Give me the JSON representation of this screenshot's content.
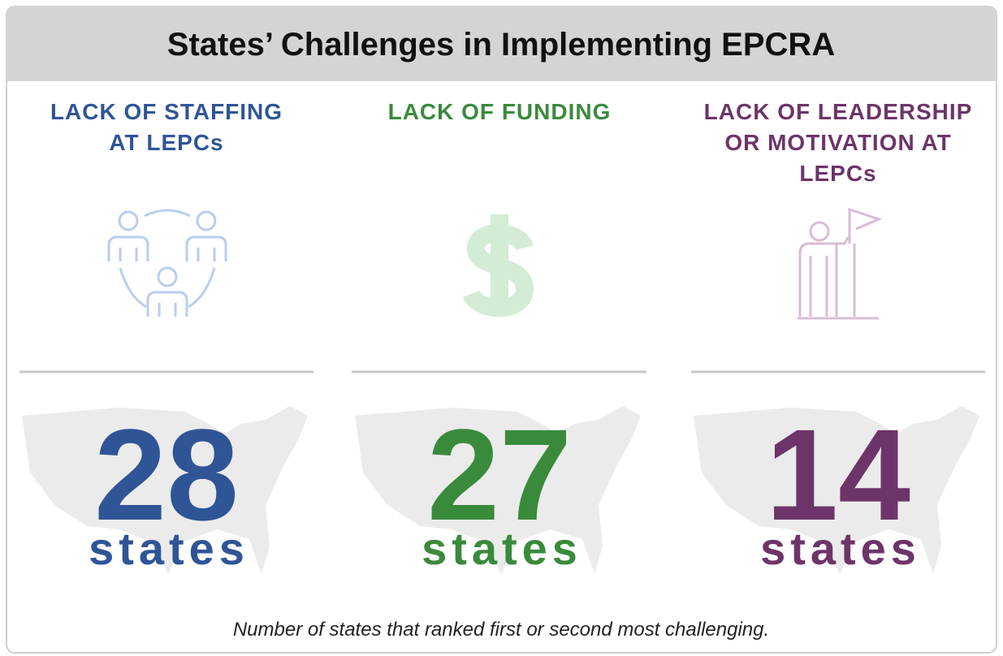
{
  "title": "States’ Challenges in Implementing EPCRA",
  "columns": [
    {
      "heading": [
        "LACK OF STAFFING",
        "AT LEPCs"
      ],
      "number": "28",
      "unit": "states"
    },
    {
      "heading": [
        "LACK OF FUNDING"
      ],
      "number": "27",
      "unit": "states"
    },
    {
      "heading": [
        "LACK OF LEADERSHIP",
        "OR MOTIVATION AT",
        "LEPCs"
      ],
      "number": "14",
      "unit": "states"
    }
  ],
  "footnote": "Number of states that ranked first or second most challenging."
}
